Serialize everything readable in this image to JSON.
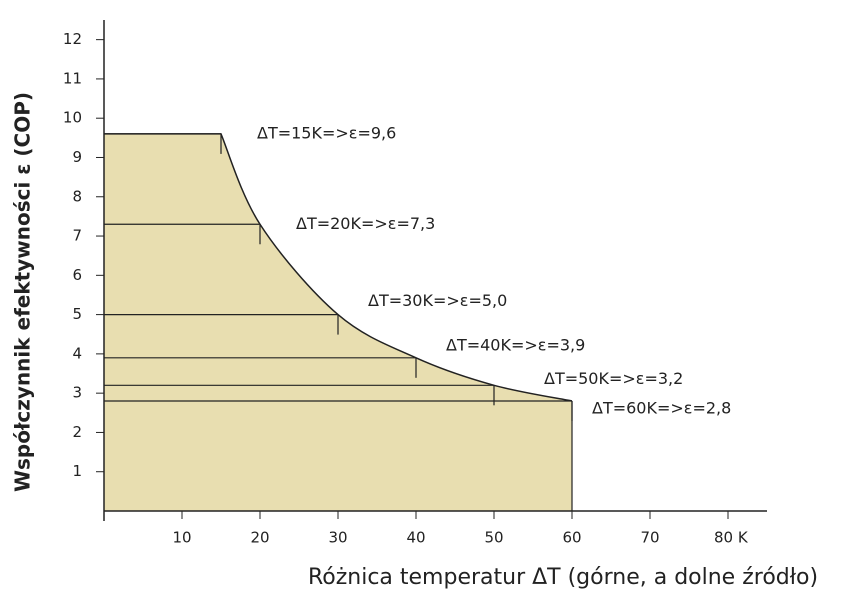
{
  "chart_data": {
    "type": "area",
    "x_label": "Różnica temperatur ΔT (górne, a dolne źródło)",
    "y_label": "Współczynnik efektywności ε (COP)",
    "x": [
      0,
      15,
      20,
      30,
      40,
      50,
      60
    ],
    "values": [
      9.6,
      9.6,
      7.3,
      5.0,
      3.9,
      3.2,
      2.8
    ],
    "annotations": [
      "ΔT=15K=>ε=9,6",
      "ΔT=20K=>ε=7,3",
      "ΔT=30K=>ε=5,0",
      "ΔT=40K=>ε=3,9",
      "ΔT=50K=>ε=3,2",
      "ΔT=60K=>ε=2,8"
    ],
    "color": "#e8deb0",
    "xlim": [
      0,
      85
    ],
    "ylim": [
      0,
      12.5
    ],
    "xticks": [
      10,
      20,
      30,
      40,
      50,
      60,
      70,
      {
        "value": 80,
        "label": "80 K"
      }
    ],
    "yticks": [
      1,
      2,
      3,
      4,
      5,
      6,
      7,
      8,
      9,
      10,
      11,
      12
    ]
  }
}
